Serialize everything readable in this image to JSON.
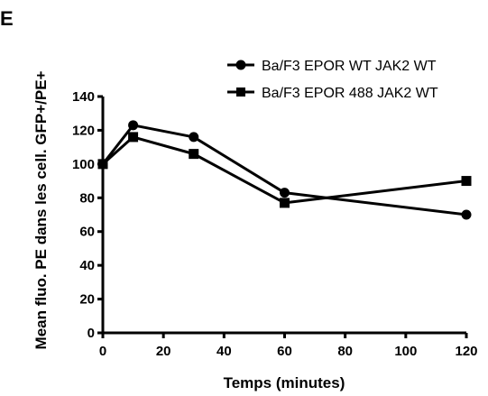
{
  "panel_label": "E",
  "chart_data": {
    "type": "line",
    "title": "",
    "xlabel": "Temps (minutes)",
    "ylabel": "Mean fluo. PE dans les cell. GFP+/PE+",
    "xlim": [
      0,
      120
    ],
    "ylim": [
      0,
      140
    ],
    "xticks": [
      0,
      20,
      40,
      60,
      80,
      100,
      120
    ],
    "yticks": [
      0,
      20,
      40,
      60,
      80,
      100,
      120,
      140
    ],
    "grid": false,
    "legend_position": "top-right",
    "series": [
      {
        "name": "Ba/F3 EPOR WT JAK2 WT",
        "marker": "circle",
        "x": [
          0,
          10,
          30,
          60,
          120
        ],
        "y": [
          100,
          123,
          116,
          83,
          70
        ]
      },
      {
        "name": "Ba/F3 EPOR 488 JAK2 WT",
        "marker": "square",
        "x": [
          0,
          10,
          30,
          60,
          120
        ],
        "y": [
          100,
          116,
          106,
          77,
          90
        ]
      }
    ]
  }
}
